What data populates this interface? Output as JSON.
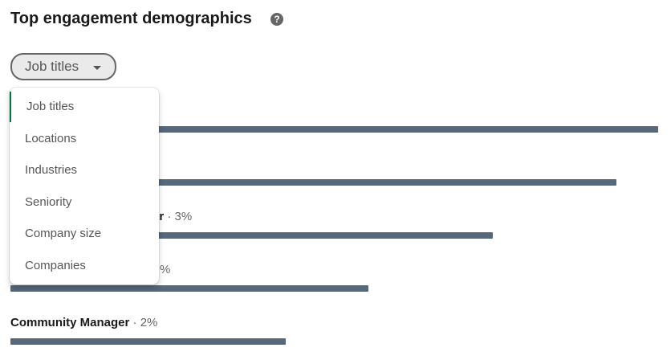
{
  "header": {
    "title": "Top engagement demographics"
  },
  "filter": {
    "selected": "Job titles"
  },
  "menu": {
    "items": [
      "Job titles",
      "Locations",
      "Industries",
      "Seniority",
      "Company size",
      "Companies"
    ]
  },
  "rows": [
    {
      "label": null,
      "share": null,
      "bar": 4.7
    },
    {
      "label": null,
      "share": null,
      "bar": 4.4
    },
    {
      "label": "er",
      "share": "· 3%",
      "bar": 3.5
    },
    {
      "label": null,
      "share": "%",
      "bar": 2.6
    },
    {
      "label": "Community Manager",
      "share": "· 2%",
      "bar": 2.0
    }
  ],
  "bar_color": "#56687a"
}
